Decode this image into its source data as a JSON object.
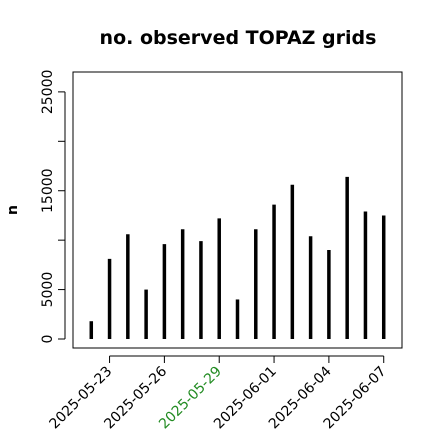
{
  "chart_data": {
    "type": "bar",
    "title": "no. observed TOPAZ grids",
    "xlabel": "",
    "ylabel": "n",
    "x": [
      "2025-05-22",
      "2025-05-23",
      "2025-05-24",
      "2025-05-25",
      "2025-05-26",
      "2025-05-27",
      "2025-05-28",
      "2025-05-29",
      "2025-05-30",
      "2025-05-31",
      "2025-06-01",
      "2025-06-02",
      "2025-06-03",
      "2025-06-04",
      "2025-06-05",
      "2025-06-06",
      "2025-06-07"
    ],
    "values": [
      1800,
      8100,
      10600,
      5000,
      9600,
      11100,
      9900,
      12200,
      4000,
      11100,
      13600,
      15600,
      10400,
      9000,
      16400,
      12900,
      12500
    ],
    "xticks": [
      {
        "label": "2025-05-23",
        "color": "#000000"
      },
      {
        "label": "2025-05-26",
        "color": "#000000"
      },
      {
        "label": "2025-05-29",
        "color": "#228b22"
      },
      {
        "label": "2025-06-01",
        "color": "#000000"
      },
      {
        "label": "2025-06-04",
        "color": "#000000"
      },
      {
        "label": "2025-06-07",
        "color": "#000000"
      }
    ],
    "yticks": [
      0,
      5000,
      10000,
      15000,
      20000,
      25000
    ],
    "ytick_labels": [
      "0",
      "5000",
      "",
      "15000",
      "",
      "25000"
    ],
    "ylim": [
      0,
      26000
    ],
    "xlim": [
      "2025-05-21",
      "2025-06-08"
    ],
    "grid": false,
    "bar_color": "#000000"
  }
}
